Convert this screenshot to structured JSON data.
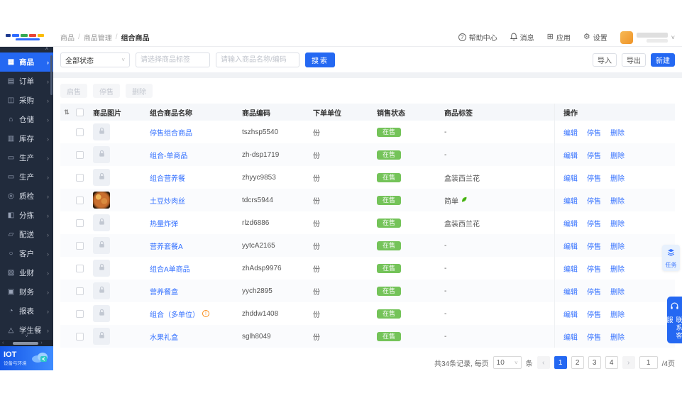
{
  "topbar": {
    "breadcrumb": [
      "商品",
      "商品管理",
      "组合商品"
    ],
    "nav": [
      {
        "label": "帮助中心",
        "icon": "help-circle-icon"
      },
      {
        "label": "消息",
        "icon": "bell-icon"
      },
      {
        "label": "应用",
        "icon": "apps-icon"
      },
      {
        "label": "设置",
        "icon": "gear-icon"
      }
    ]
  },
  "sidebar": {
    "items": [
      {
        "label": "商品",
        "icon": "goods-icon",
        "active": true
      },
      {
        "label": "订单",
        "icon": "orders-icon",
        "active": false
      },
      {
        "label": "采购",
        "icon": "purchase-icon",
        "active": false
      },
      {
        "label": "仓储",
        "icon": "warehouse-icon",
        "active": false
      },
      {
        "label": "库存",
        "icon": "inventory-icon",
        "active": false
      },
      {
        "label": "生产",
        "icon": "production-icon",
        "active": false
      },
      {
        "label": "生产",
        "icon": "production-icon",
        "active": false
      },
      {
        "label": "质检",
        "icon": "quality-icon",
        "active": false
      },
      {
        "label": "分拣",
        "icon": "sorting-icon",
        "active": false
      },
      {
        "label": "配送",
        "icon": "delivery-icon",
        "active": false
      },
      {
        "label": "客户",
        "icon": "customer-icon",
        "active": false
      },
      {
        "label": "业财",
        "icon": "business-finance-icon",
        "active": false
      },
      {
        "label": "财务",
        "icon": "finance-icon",
        "active": false
      },
      {
        "label": "报表",
        "icon": "report-icon",
        "active": false
      },
      {
        "label": "学生餐",
        "icon": "student-meal-icon",
        "active": false
      }
    ],
    "iot": {
      "title": "IOT",
      "subtitle": "设备与环境"
    }
  },
  "filters": {
    "status_select": "全部状态",
    "tag_placeholder": "请选择商品标签",
    "search_placeholder": "请输入商品名称/编码",
    "search_button": "搜索"
  },
  "toolbar": {
    "import": "导入",
    "export": "导出",
    "create": "新建"
  },
  "bulk_actions": [
    {
      "label": "启售"
    },
    {
      "label": "停售"
    },
    {
      "label": "删除"
    }
  ],
  "table": {
    "headers": [
      "商品图片",
      "组合商品名称",
      "商品编码",
      "下单单位",
      "销售状态",
      "商品标签",
      "操作"
    ],
    "row_actions": [
      "编辑",
      "停售",
      "删除"
    ],
    "rows": [
      {
        "name": "停售组合商品",
        "code": "tszhsp5540",
        "unit": "份",
        "status": "在售",
        "tag": "-",
        "image": "placeholder",
        "warning": false
      },
      {
        "name": "组合-单商品",
        "code": "zh-dsp1719",
        "unit": "份",
        "status": "在售",
        "tag": "-",
        "image": "placeholder",
        "warning": false
      },
      {
        "name": "组合营养餐",
        "code": "zhyyc9853",
        "unit": "份",
        "status": "在售",
        "tag": "盒装西兰花",
        "image": "placeholder",
        "warning": false
      },
      {
        "name": "土豆炒肉丝",
        "code": "tdcrs5944",
        "unit": "份",
        "status": "在售",
        "tag": "简单",
        "tag_icon": "leaf-icon",
        "image": "food",
        "warning": false
      },
      {
        "name": "热量炸弹",
        "code": "rlzd6886",
        "unit": "份",
        "status": "在售",
        "tag": "盒装西兰花",
        "image": "placeholder",
        "warning": false
      },
      {
        "name": "营养套餐A",
        "code": "yytcA2165",
        "unit": "份",
        "status": "在售",
        "tag": "-",
        "image": "placeholder",
        "warning": false
      },
      {
        "name": "组合A单商品",
        "code": "zhAdsp9976",
        "unit": "份",
        "status": "在售",
        "tag": "-",
        "image": "placeholder",
        "warning": false
      },
      {
        "name": "营养餐盒",
        "code": "yych2895",
        "unit": "份",
        "status": "在售",
        "tag": "-",
        "image": "placeholder",
        "warning": false
      },
      {
        "name": "组合（多单位）",
        "code": "zhddw1408",
        "unit": "份",
        "status": "在售",
        "tag": "-",
        "image": "placeholder",
        "warning": true
      },
      {
        "name": "水果礼盒",
        "code": "sglh8049",
        "unit": "份",
        "status": "在售",
        "tag": "-",
        "image": "placeholder",
        "warning": false
      }
    ]
  },
  "pagination": {
    "total_text": "共34条记录, 每页",
    "per_page": "10",
    "per_page_unit": "条",
    "pages": [
      "1",
      "2",
      "3",
      "4"
    ],
    "active_page": "1",
    "jump_value": "1",
    "jump_suffix": "/4页"
  },
  "floating": {
    "tasks": "任务",
    "contact_service": "联系客服"
  },
  "colors": {
    "primary": "#2468f2",
    "link": "#3370ff",
    "badge_green": "#74c359",
    "sidebar_bg": "#212b3c",
    "warning_orange": "#fa8c16"
  }
}
